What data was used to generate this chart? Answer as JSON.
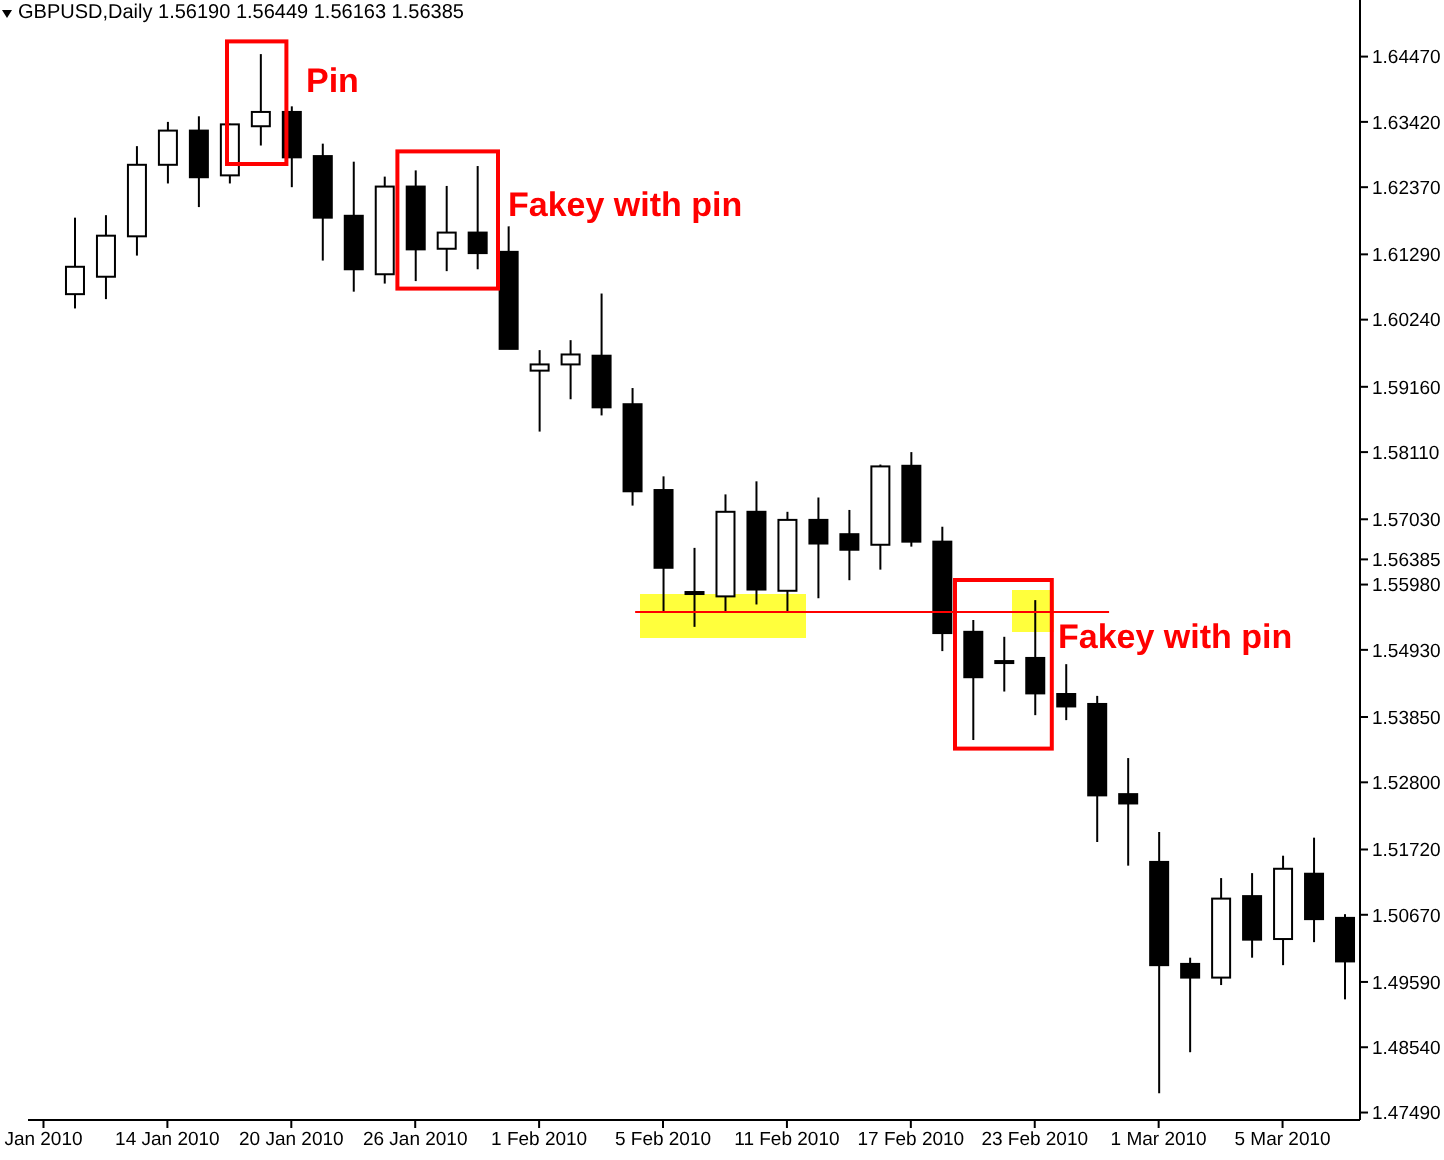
{
  "chart_data": {
    "type": "candlestick",
    "title": "GBPUSD,Daily 1.56190 1.56449 1.56163 1.56385",
    "categories": [
      "Jan 2010",
      null,
      null,
      null,
      "14 Jan 2010",
      null,
      null,
      null,
      "20 Jan 2010",
      null,
      null,
      null,
      "26 Jan 2010",
      null,
      null,
      null,
      "1 Feb 2010",
      null,
      null,
      null,
      "5 Feb 2010",
      null,
      null,
      null,
      "11 Feb 2010",
      null,
      null,
      null,
      "17 Feb 2010",
      null,
      null,
      null,
      "23 Feb 2010",
      null,
      null,
      null,
      "1 Mar 2010",
      null,
      null,
      null,
      "5 Mar 2010",
      null,
      null
    ],
    "ohlc": [
      null,
      [
        1.6065,
        1.6188,
        1.6042,
        1.6109
      ],
      [
        1.6093,
        1.6192,
        1.6057,
        1.6159
      ],
      [
        1.6158,
        1.6303,
        1.6127,
        1.6273
      ],
      [
        1.6273,
        1.6342,
        1.6243,
        1.6328
      ],
      [
        1.6328,
        1.6351,
        1.6205,
        1.6253
      ],
      [
        1.6256,
        1.6339,
        1.6243,
        1.6338
      ],
      [
        1.6335,
        1.6451,
        1.6304,
        1.6358
      ],
      [
        1.6358,
        1.6367,
        1.6237,
        1.6285
      ],
      [
        1.6287,
        1.6307,
        1.6119,
        1.6188
      ],
      [
        1.6191,
        1.6278,
        1.6069,
        1.6105
      ],
      [
        1.6097,
        1.6254,
        1.6082,
        1.6238
      ],
      [
        1.6238,
        1.6264,
        1.6086,
        1.6137
      ],
      [
        1.6138,
        1.6239,
        1.6102,
        1.6164
      ],
      [
        1.6164,
        1.6271,
        1.6105,
        1.6131
      ],
      [
        1.6133,
        1.6174,
        1.5977,
        1.5977
      ],
      [
        1.5942,
        1.5975,
        1.5844,
        1.5952
      ],
      [
        1.5952,
        1.5991,
        1.5896,
        1.5968
      ],
      [
        1.5966,
        1.6066,
        1.587,
        1.5883
      ],
      [
        1.5888,
        1.5914,
        1.5725,
        1.5748
      ],
      [
        1.575,
        1.5772,
        1.5553,
        1.5625
      ],
      [
        1.5586,
        1.5657,
        1.553,
        1.5584
      ],
      [
        1.5579,
        1.5743,
        1.5554,
        1.5715
      ],
      [
        1.5715,
        1.5764,
        1.5566,
        1.559
      ],
      [
        1.5588,
        1.5715,
        1.5555,
        1.5702
      ],
      [
        1.5702,
        1.5738,
        1.5576,
        1.5664
      ],
      [
        1.5679,
        1.5718,
        1.5605,
        1.5654
      ],
      [
        1.5662,
        1.5791,
        1.5622,
        1.5788
      ],
      [
        1.5789,
        1.5811,
        1.5659,
        1.5667
      ],
      [
        1.5667,
        1.5691,
        1.5491,
        1.552
      ],
      [
        1.5522,
        1.5541,
        1.5348,
        1.5449
      ],
      [
        1.5475,
        1.5514,
        1.5426,
        1.5474
      ],
      [
        1.548,
        1.5573,
        1.5388,
        1.5423
      ],
      [
        1.5422,
        1.547,
        1.538,
        1.5402
      ],
      [
        1.5406,
        1.5419,
        1.5184,
        1.5259
      ],
      [
        1.5261,
        1.5319,
        1.5146,
        1.5246
      ],
      [
        1.5152,
        1.52,
        1.478,
        1.4986
      ],
      [
        1.4988,
        1.4998,
        1.4846,
        1.4966
      ],
      [
        1.4966,
        1.5126,
        1.4954,
        1.5093
      ],
      [
        1.5097,
        1.5134,
        1.4998,
        1.5027
      ],
      [
        1.5028,
        1.5162,
        1.4986,
        1.5141
      ],
      [
        1.5133,
        1.5191,
        1.5023,
        1.506
      ],
      [
        1.5062,
        1.5068,
        1.4931,
        1.4992
      ]
    ],
    "color": "#000000",
    "colors": [
      null,
      "#ffffff",
      "#ffffff",
      "#ffffff",
      "#ffffff",
      "#000000",
      "#ffffff",
      "#ffffff",
      "#000000",
      "#000000",
      "#000000",
      "#ffffff",
      "#000000",
      "#ffffff",
      "#000000",
      "#000000",
      "#ffffff",
      "#ffffff",
      "#000000",
      "#000000",
      "#000000",
      "#000000",
      "#ffffff",
      "#000000",
      "#ffffff",
      "#000000",
      "#000000",
      "#ffffff",
      "#000000",
      "#000000",
      "#000000",
      "#000000",
      "#000000",
      "#000000",
      "#000000",
      "#000000",
      "#000000",
      "#000000",
      "#ffffff",
      "#000000",
      "#ffffff",
      "#000000",
      "#000000"
    ],
    "ylim": [
      1.4737,
      1.6538
    ],
    "yticks": [
      {
        "value": 1.6447,
        "label": "1.64470"
      },
      {
        "value": 1.6342,
        "label": "1.63420"
      },
      {
        "value": 1.6237,
        "label": "1.62370"
      },
      {
        "value": 1.6129,
        "label": "1.61290"
      },
      {
        "value": 1.6024,
        "label": "1.60240"
      },
      {
        "value": 1.5916,
        "label": "1.59160"
      },
      {
        "value": 1.5811,
        "label": "1.58110"
      },
      {
        "value": 1.5703,
        "label": "1.57030"
      },
      1.56385,
      {
        "value": 1.5598,
        "label": "1.55980"
      },
      {
        "value": 1.5493,
        "label": "1.54930"
      },
      {
        "value": 1.5385,
        "label": "1.53850"
      },
      {
        "value": 1.528,
        "label": "1.52800"
      },
      {
        "value": 1.5172,
        "label": "1.51720"
      },
      {
        "value": 1.5067,
        "label": "1.50670"
      },
      {
        "value": 1.4959,
        "label": "1.49590"
      },
      {
        "value": 1.4854,
        "label": "1.48540"
      },
      {
        "value": 1.4749,
        "label": "1.47490"
      }
    ],
    "ref_lines": [
      {
        "axis": "y",
        "value": 1.5554,
        "color": "#ff0000"
      }
    ],
    "annotations": [
      "Pin",
      "Fakey with pin",
      "Fakey with pin"
    ]
  }
}
